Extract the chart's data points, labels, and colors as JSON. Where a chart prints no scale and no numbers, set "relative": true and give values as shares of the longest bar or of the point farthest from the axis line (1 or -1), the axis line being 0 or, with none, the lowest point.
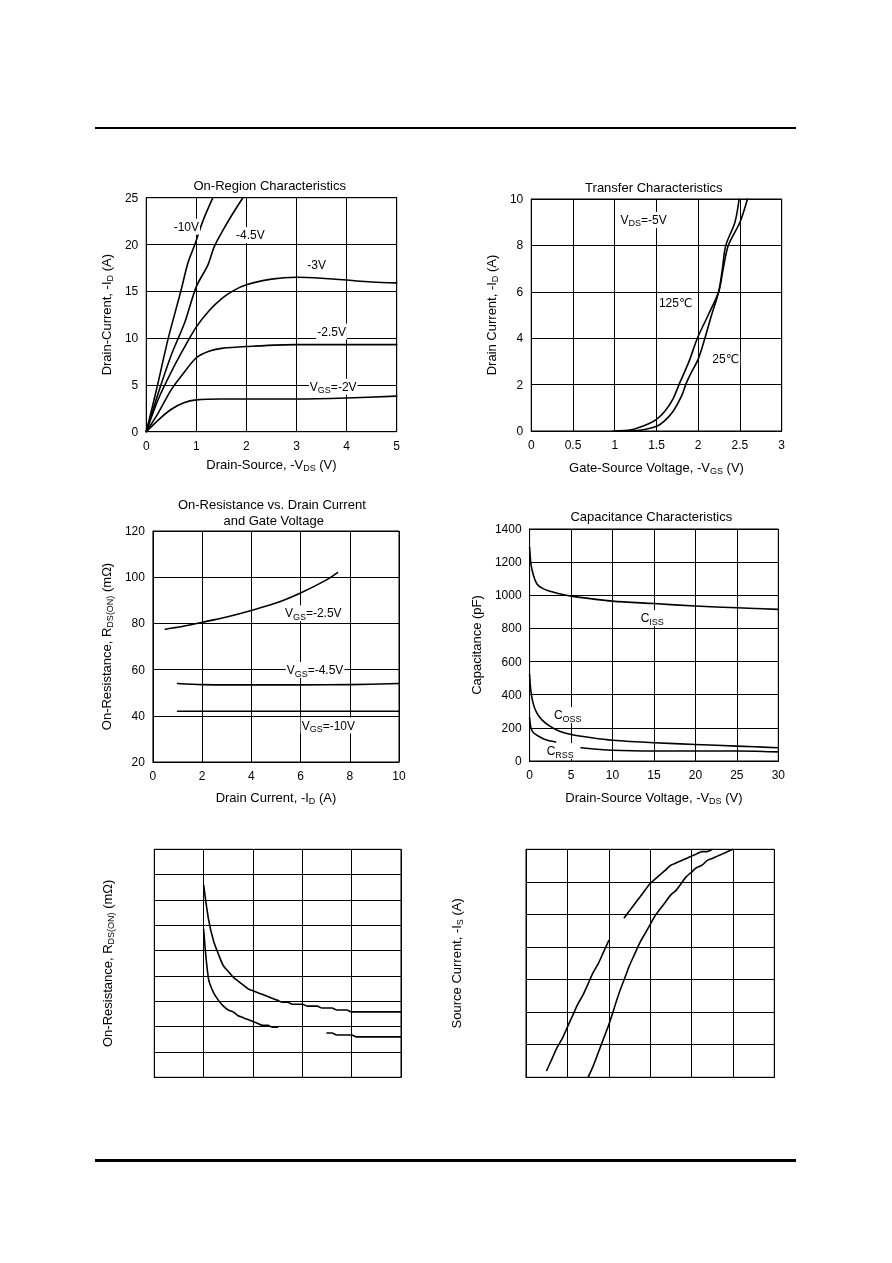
{
  "chart_data": [
    {
      "type": "line",
      "title": "On-Region Characteristics",
      "xlabel": "Drain-Source, -V$_{DS}$ (V)",
      "ylabel": "Drain-Current, -I$_{D}$ (A)",
      "xlim": [
        0,
        5
      ],
      "xticks": [
        0,
        1,
        2,
        3,
        4,
        5
      ],
      "ylim": [
        0,
        25
      ],
      "yticks": [
        0,
        5,
        10,
        15,
        20,
        25
      ],
      "grid": true,
      "series": [
        {
          "color": "#000000",
          "x": [
            0,
            0.2,
            0.44,
            0.69,
            0.83,
            0.97,
            1.13,
            1.33
          ],
          "values": [
            0,
            4.4,
            10,
            15,
            18,
            20,
            22.5,
            25
          ]
        },
        {
          "color": "#000000",
          "x": [
            0,
            0.25,
            0.5,
            0.77,
            1,
            1.23,
            1.36,
            1.55,
            1.75,
            1.93
          ],
          "values": [
            0,
            4.3,
            8.2,
            11.7,
            15.5,
            17.8,
            19.8,
            21.7,
            23.5,
            25
          ]
        },
        {
          "color": "#000000",
          "x": [
            0,
            0.25,
            0.5,
            0.75,
            1,
            1.25,
            1.5,
            1.75,
            2,
            2.5,
            3,
            3.5,
            4,
            4.5,
            5
          ],
          "values": [
            0,
            3.6,
            6.4,
            8.9,
            11.2,
            12.9,
            14.2,
            15.1,
            15.7,
            16.3,
            16.5,
            16.4,
            16.2,
            16,
            15.9
          ]
        },
        {
          "color": "#000000",
          "x": [
            0,
            0.25,
            0.5,
            0.75,
            1,
            1.25,
            1.5,
            2,
            3,
            4,
            5
          ],
          "values": [
            0,
            2.1,
            4.5,
            6.3,
            7.9,
            8.6,
            8.9,
            9.1,
            9.3,
            9.3,
            9.3
          ]
        },
        {
          "color": "#000000",
          "x": [
            0,
            0.25,
            0.5,
            0.75,
            1,
            1.5,
            2,
            3,
            4,
            5
          ],
          "values": [
            0,
            1.3,
            2.4,
            3.1,
            3.4,
            3.5,
            3.5,
            3.5,
            3.6,
            3.8
          ]
        }
      ],
      "annotations": [
        {
          "text": "-10V",
          "x": 0.8,
          "y": 21.9
        },
        {
          "text": "-4.5V",
          "x": 2.08,
          "y": 21
        },
        {
          "text": "-3V",
          "x": 3.4,
          "y": 17.8
        },
        {
          "text": "-2.5V",
          "x": 3.7,
          "y": 10.7
        },
        "V$_{GS}$=-2V"
      ]
    },
    {
      "type": "line",
      "title": "Transfer Characteristics",
      "xlabel": "Gate-Source Voltage, -V$_{GS}$ (V)",
      "ylabel": "Drain Current, -I$_{D}$ (A)",
      "xlim": [
        0,
        3
      ],
      "xticks": [
        0,
        0.5,
        1,
        1.5,
        2,
        2.5,
        3
      ],
      "ylim": [
        0,
        10
      ],
      "yticks": [
        0,
        2,
        4,
        6,
        8,
        10
      ],
      "grid": true,
      "series": [
        {
          "color": "#000000",
          "x": [
            0.98,
            1.2,
            1.4,
            1.5,
            1.6,
            1.7,
            1.77,
            1.89,
            1.99,
            2.12,
            2.245,
            2.3,
            2.36,
            2.5,
            2.59
          ],
          "values": [
            0,
            0.05,
            0.3,
            0.5,
            0.85,
            1.4,
            2,
            3,
            4,
            5,
            6,
            7,
            8,
            9,
            10
          ]
        },
        {
          "color": "#000000",
          "x": [
            1.1,
            1.3,
            1.5,
            1.6,
            1.7,
            1.8,
            1.85,
            1.9,
            2,
            2.08,
            2.16,
            2.245,
            2.29,
            2.33,
            2.44,
            2.49
          ],
          "values": [
            0,
            0.03,
            0.2,
            0.45,
            0.85,
            1.5,
            2,
            2.4,
            3.1,
            4,
            5,
            6,
            7,
            8,
            9,
            10
          ]
        }
      ],
      "annotations": [
        "V$_{DS}$=-5V",
        {
          "text": "125℃",
          "x": 1.73,
          "y": 5.5
        },
        {
          "text": "25℃",
          "x": 2.33,
          "y": 3.1
        }
      ]
    },
    {
      "type": "line",
      "title": "On-Resistance vs. Drain Current and Gate Voltage",
      "xlabel": "Drain Current, -I$_{D}$ (A)",
      "ylabel": "On-Resistance, R$_{DS(ON)}$ (mΩ)",
      "xlim": [
        0,
        10
      ],
      "xticks": [
        0,
        2,
        4,
        6,
        8,
        10
      ],
      "ylim": [
        20,
        120
      ],
      "yticks": [
        20,
        40,
        60,
        80,
        100,
        120
      ],
      "grid": true,
      "series": [
        {
          "color": "#000000",
          "x": [
            0.5,
            1,
            2,
            3,
            4,
            5,
            6,
            7,
            7.5
          ],
          "values": [
            77.5,
            78.3,
            80.5,
            82.8,
            85.6,
            88.8,
            93.2,
            98.5,
            102
          ]
        },
        {
          "color": "#000000",
          "x": [
            1,
            2,
            4,
            6,
            8,
            10
          ],
          "values": [
            54,
            53.5,
            53.4,
            53.4,
            53.5,
            54
          ]
        },
        {
          "color": "#000000",
          "x": [
            1,
            10
          ],
          "values": [
            42,
            42
          ]
        }
      ],
      "annotations": [
        "V$_{GS}$=-2.5V",
        "V$_{GS}$=-4.5V",
        "V$_{GS}$=-10V"
      ]
    },
    {
      "type": "line",
      "title": "Capacitance Characteristics",
      "xlabel": "Drain-Source Voltage, -V$_{DS}$ (V)",
      "ylabel": "Capacitance (pF)",
      "xlim": [
        0,
        30
      ],
      "xticks": [
        0,
        5,
        10,
        15,
        20,
        25,
        30
      ],
      "ylim": [
        0,
        1400
      ],
      "yticks": [
        0,
        200,
        400,
        600,
        800,
        1000,
        1200,
        1400
      ],
      "grid": true,
      "series": [
        {
          "color": "#000000",
          "x": [
            0,
            0.16,
            0.47,
            0.87,
            1.46,
            2.44,
            4,
            5,
            10,
            15,
            20,
            25,
            30
          ],
          "values": [
            1290,
            1190,
            1120,
            1070,
            1045,
            1025,
            1005,
            995,
            965,
            950,
            935,
            925,
            915
          ]
        },
        {
          "color": "#000000",
          "x": [
            0,
            0.16,
            0.47,
            0.87,
            1.46,
            2.44,
            3.6,
            5,
            7.5,
            10,
            15,
            20,
            25,
            30
          ],
          "values": [
            520,
            420,
            340,
            290,
            250,
            210,
            180,
            160,
            140,
            125,
            110,
            100,
            90,
            80
          ]
        },
        {
          "color": "#000000",
          "x": [
            0,
            0.16,
            0.47,
            1.06,
            1.85,
            3.15,
            4.5,
            6.2,
            10,
            15,
            20,
            25,
            30
          ],
          "values": [
            260,
            200,
            170,
            150,
            130,
            115,
            null,
            80,
            65,
            60,
            60,
            60,
            55
          ]
        }
      ],
      "annotations": [
        {
          "text": "C$_{ISS}$",
          "x": 14.8,
          "y": 862
        },
        {
          "text": "C$_{OSS}$",
          "x": 4.6,
          "y": 277
        },
        {
          "text": "C$_{RSS}$",
          "x": 3.7,
          "y": 60
        }
      ]
    },
    {
      "type": "line",
      "ylabel": "On-Resistance, R$_{DS(ON)}$ (mΩ)",
      "relative": true,
      "grid": true,
      "categories": [
        null,
        null,
        null,
        null,
        null,
        null,
        null,
        null,
        null,
        null,
        null,
        null,
        null,
        null,
        null,
        null,
        null,
        null,
        null,
        null,
        null,
        null,
        null,
        null,
        null,
        null,
        null,
        null,
        null,
        null,
        null,
        null,
        null,
        null,
        null,
        null,
        null,
        null,
        null,
        null,
        null,
        null,
        null,
        null,
        null,
        null,
        null,
        null,
        null,
        null,
        null
      ],
      "series": [
        {
          "color": "#000000",
          "values": [
            null,
            null,
            null,
            null,
            null,
            null,
            null,
            null,
            null,
            null,
            1,
            0.82,
            0.71,
            0.64,
            0.58,
            0.55,
            0.52,
            0.5,
            0.48,
            0.46,
            0.45,
            0.44,
            0.43,
            0.42,
            0.41,
            0.4,
            0.39,
            0.39,
            0.38,
            0.38,
            0.38,
            0.37,
            0.37,
            0.37,
            0.36,
            0.36,
            0.36,
            0.35,
            0.35,
            0.35,
            0.34,
            0.34,
            0.34,
            0.34,
            0.34,
            0.34,
            0.34,
            0.34,
            0.34,
            0.34,
            0.34
          ]
        },
        {
          "color": "#000000",
          "values": [
            null,
            null,
            null,
            null,
            null,
            null,
            null,
            null,
            null,
            null,
            0.77,
            0.51,
            0.44,
            0.4,
            0.37,
            0.35,
            0.34,
            0.32,
            0.31,
            0.3,
            0.29,
            0.28,
            0.27,
            0.27,
            0.26,
            0.26,
            null,
            null,
            null,
            null,
            null,
            null,
            null,
            null,
            null,
            0.23,
            0.23,
            0.22,
            0.22,
            0.22,
            0.22,
            0.21,
            0.21,
            0.21,
            0.21,
            0.21,
            0.21,
            0.21,
            0.21,
            0.21,
            0.21
          ]
        }
      ]
    },
    {
      "type": "line",
      "ylabel": "Source Current, -I$_{S}$ (A)",
      "relative": true,
      "grid": true,
      "categories": [
        null,
        null,
        null,
        null,
        null,
        null,
        null,
        null,
        null,
        null,
        null,
        null,
        null,
        null,
        null,
        null,
        null,
        null,
        null,
        null,
        null,
        null,
        null,
        null,
        null,
        null,
        null,
        null,
        null,
        null,
        null,
        null,
        null,
        null,
        null,
        null,
        null,
        null,
        null,
        null,
        null,
        null,
        null,
        null,
        null,
        null,
        null,
        null,
        null
      ],
      "series": [
        {
          "color": "#000000",
          "values": [
            null,
            null,
            null,
            null,
            0.03,
            0.08,
            0.13,
            0.17,
            0.22,
            0.27,
            0.32,
            0.36,
            0.41,
            0.46,
            0.5,
            0.55,
            0.6,
            null,
            null,
            0.7,
            0.73,
            0.76,
            0.79,
            0.82,
            0.85,
            0.87,
            0.89,
            0.91,
            0.93,
            0.94,
            0.95,
            0.96,
            0.97,
            0.98,
            0.99,
            0.99,
            1,
            null,
            null,
            null,
            null,
            null,
            null,
            null,
            null,
            null,
            null,
            null,
            null
          ]
        },
        {
          "color": "#000000",
          "values": [
            null,
            null,
            null,
            null,
            null,
            null,
            null,
            null,
            null,
            null,
            null,
            null,
            0,
            0.05,
            0.11,
            0.17,
            0.23,
            0.3,
            0.37,
            0.43,
            0.49,
            0.54,
            0.59,
            0.63,
            0.67,
            0.71,
            0.74,
            0.77,
            0.8,
            0.82,
            0.85,
            0.88,
            0.9,
            0.92,
            0.93,
            0.95,
            0.96,
            0.97,
            0.98,
            0.99,
            1,
            null,
            null,
            null,
            null,
            null,
            null,
            null,
            null
          ]
        }
      ]
    }
  ]
}
